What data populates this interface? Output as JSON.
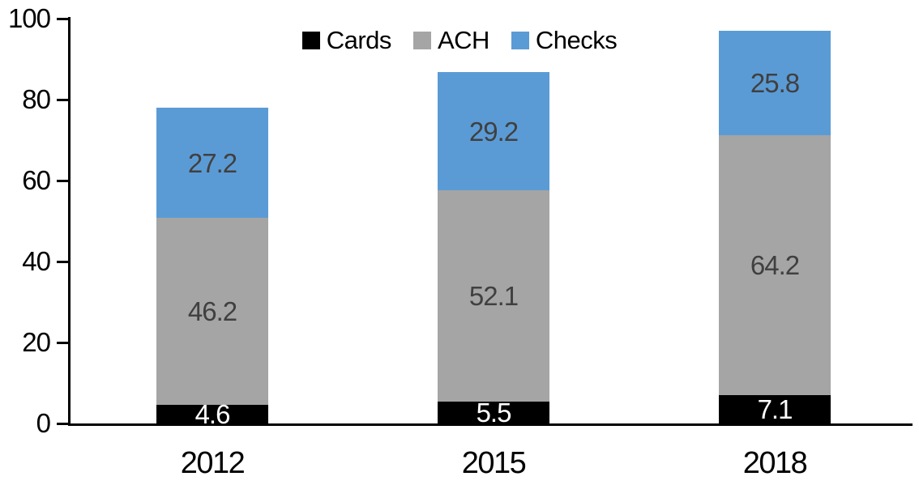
{
  "chart_data": {
    "type": "bar",
    "stacked": true,
    "title": "",
    "categories": [
      "2012",
      "2015",
      "2018"
    ],
    "series": [
      {
        "name": "Cards",
        "color": "#000000",
        "label_color": "#ffffff",
        "values": [
          4.6,
          5.5,
          7.1
        ]
      },
      {
        "name": "ACH",
        "color": "#a5a5a5",
        "label_color": "#404040",
        "values": [
          46.2,
          52.1,
          64.2
        ]
      },
      {
        "name": "Checks",
        "color": "#5b9bd5",
        "label_color": "#404040",
        "values": [
          27.2,
          29.2,
          25.8
        ]
      }
    ],
    "totals": [
      78.0,
      86.8,
      97.1
    ],
    "xlabel": "",
    "ylabel": "",
    "ylim": [
      0,
      100
    ],
    "yticks": [
      0,
      20,
      40,
      60,
      80,
      100
    ],
    "grid": false,
    "legend_position": "top-center",
    "axis_color": "#000000",
    "background_color": "#ffffff"
  }
}
